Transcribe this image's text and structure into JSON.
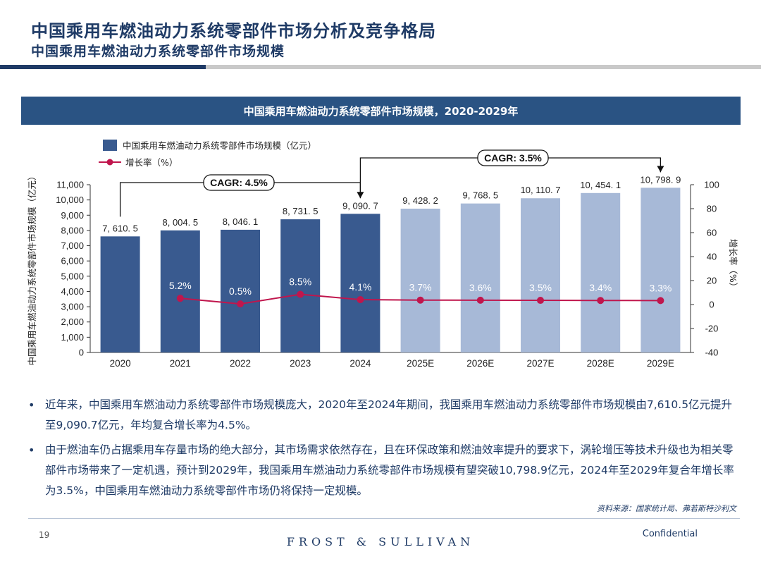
{
  "header": {
    "title": "中国乘用车燃油动力系统零部件市场分析及竞争格局",
    "subtitle": "中国乘用车燃油动力系统零部件市场规模"
  },
  "chart_banner": "中国乘用车燃油动力系统零部件市场规模，2020-2029年",
  "chart_data": {
    "type": "bar",
    "title": "中国乘用车燃油动力系统零部件市场规模，2020-2029年",
    "categories": [
      "2020",
      "2021",
      "2022",
      "2023",
      "2024",
      "2025E",
      "2026E",
      "2027E",
      "2028E",
      "2029E"
    ],
    "series": [
      {
        "name": "中国乘用车燃油动力系统零部件市场规模（亿元）",
        "type": "bar",
        "axis": "left",
        "values": [
          7610.5,
          8004.5,
          8046.1,
          8731.5,
          9090.7,
          9428.2,
          9768.5,
          10110.7,
          10454.1,
          10798.9
        ],
        "labels": [
          "7, 610. 5",
          "8, 004. 5",
          "8, 046. 1",
          "8, 731. 5",
          "9, 090. 7",
          "9, 428. 2",
          "9, 768. 5",
          "10, 110. 7",
          "10, 454. 1",
          "10, 798. 9"
        ],
        "colors": [
          "#395a8f",
          "#395a8f",
          "#395a8f",
          "#395a8f",
          "#395a8f",
          "#a7b9d7",
          "#a7b9d7",
          "#a7b9d7",
          "#a7b9d7",
          "#a7b9d7"
        ]
      },
      {
        "name": "增长率（%）",
        "type": "line",
        "axis": "right",
        "values": [
          null,
          5.2,
          0.5,
          8.5,
          4.1,
          3.7,
          3.6,
          3.5,
          3.4,
          3.3
        ],
        "labels": [
          "",
          "5.2%",
          "0.5%",
          "8.5%",
          "4.1%",
          "3.7%",
          "3.6%",
          "3.5%",
          "3.4%",
          "3.3%"
        ],
        "color": "#c0164d"
      }
    ],
    "ylabel": "中国乘用车燃油动力系统零部件市场规模（亿元）",
    "ylabel_right": "增长率（%）",
    "ylim": [
      0,
      11000
    ],
    "yticks": [
      "0",
      "1,000",
      "2,000",
      "3,000",
      "4,000",
      "5,000",
      "6,000",
      "7,000",
      "8,000",
      "9,000",
      "10,000",
      "11,000"
    ],
    "ylim_right": [
      -40,
      100
    ],
    "yticks_right": [
      "-40",
      "-20",
      "0",
      "20",
      "40",
      "60",
      "80",
      "100"
    ],
    "annotations": [
      {
        "text": "CAGR: 4.5%",
        "from": "2020",
        "to": "2024"
      },
      {
        "text": "CAGR: 3.5%",
        "from": "2024",
        "to": "2029E"
      }
    ],
    "legend_position": "top-left",
    "grid": false
  },
  "bullets": [
    "近年来，中国乘用车燃油动力系统零部件市场规模庞大，2020年至2024年期间，我国乘用车燃油动力系统零部件市场规模由7,610.5亿元提升至9,090.7亿元，年均复合增长率为4.5%。",
    "由于燃油车仍占据乘用车存量市场的绝大部分，其市场需求依然存在，且在环保政策和燃油效率提升的要求下，涡轮增压等技术升级也为相关零部件市场带来了一定机遇，预计到2029年，我国乘用车燃油动力系统零部件市场规模有望突破10,798.9亿元，2024年至2029年复合年增长率为3.5%，中国乘用车燃油动力系统零部件市场仍将保持一定规模。"
  ],
  "bullet_symbol": "•",
  "footer": {
    "source": "资料来源：国家统计局、弗若斯特沙利文",
    "page_number": "19",
    "brand": "FROST & SULLIVAN",
    "confidential": "Confidential"
  }
}
